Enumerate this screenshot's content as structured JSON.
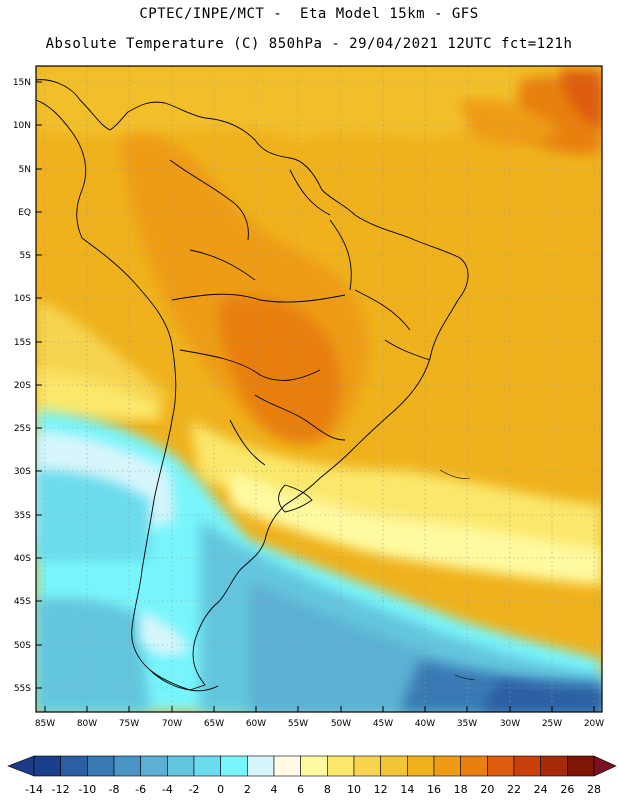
{
  "title_line1": "CPTEC/INPE/MCT -  Eta Model 15km - GFS",
  "title_line2": "Absolute Temperature (C) 850hPa - 29/04/2021 12UTC fct=121h",
  "latitude_labels": [
    "15N",
    "10N",
    "5N",
    "EQ",
    "5S",
    "10S",
    "15S",
    "20S",
    "25S",
    "30S",
    "35S",
    "40S",
    "45S",
    "50S",
    "55S"
  ],
  "longitude_labels": [
    "85W",
    "80W",
    "75W",
    "70W",
    "65W",
    "60W",
    "55W",
    "50W",
    "45W",
    "40W",
    "35W",
    "30W",
    "25W",
    "20W"
  ],
  "colorbar": {
    "tick_labels": [
      "-14",
      "-12",
      "-10",
      "-8",
      "-6",
      "-4",
      "-2",
      "0",
      "2",
      "4",
      "6",
      "8",
      "10",
      "12",
      "14",
      "16",
      "18",
      "20",
      "22",
      "24",
      "26",
      "28"
    ],
    "colors": [
      "#1a3f8c",
      "#2b5ea3",
      "#3979b4",
      "#4a95c5",
      "#5bb0d3",
      "#63c6de",
      "#6bdced",
      "#78f5fb",
      "#d7f6fb",
      "#fffbe6",
      "#fffaa0",
      "#fbe76a",
      "#f6d450",
      "#f2c437",
      "#efb21c",
      "#ee9c15",
      "#e87f10",
      "#dd5b0c",
      "#c8410a",
      "#a62a08",
      "#7e1506"
    ]
  }
}
